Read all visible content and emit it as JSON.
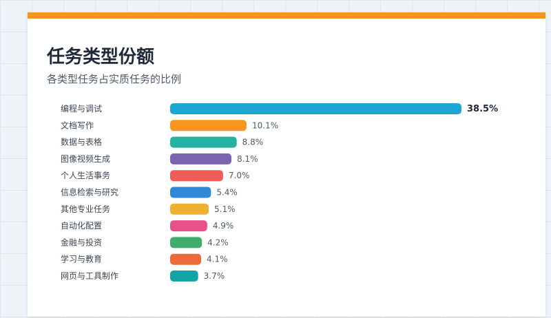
{
  "title": "任务类型份额",
  "subtitle": "各类型任务占实质任务的比例",
  "colors": {
    "accent": "#f5951f",
    "card_bg": "#ffffff"
  },
  "chart_data": {
    "type": "bar",
    "orientation": "horizontal",
    "title": "任务类型份额",
    "subtitle": "各类型任务占实质任务的比例",
    "categories": [
      "编程与调试",
      "文档写作",
      "数据与表格",
      "图像视频生成",
      "个人生活事务",
      "信息检索与研究",
      "其他专业任务",
      "自动化配置",
      "金融与投资",
      "学习与教育",
      "网页与工具制作"
    ],
    "values": [
      38.5,
      10.1,
      8.8,
      8.1,
      7.0,
      5.4,
      5.1,
      4.9,
      4.2,
      4.1,
      3.7
    ],
    "value_labels": [
      "38.5%",
      "10.1%",
      "8.8%",
      "8.1%",
      "7.0%",
      "5.4%",
      "5.1%",
      "4.9%",
      "4.2%",
      "4.1%",
      "3.7%"
    ],
    "colors": [
      "#1ca6d3",
      "#f7961f",
      "#22b3a3",
      "#7a64b0",
      "#f25c56",
      "#2f89d6",
      "#f0b130",
      "#e8508a",
      "#3fae6a",
      "#ee6a3a",
      "#16a3a5"
    ],
    "value_unit": "%",
    "xlim": [
      0,
      38.5
    ],
    "grid": false,
    "legend": "none"
  }
}
